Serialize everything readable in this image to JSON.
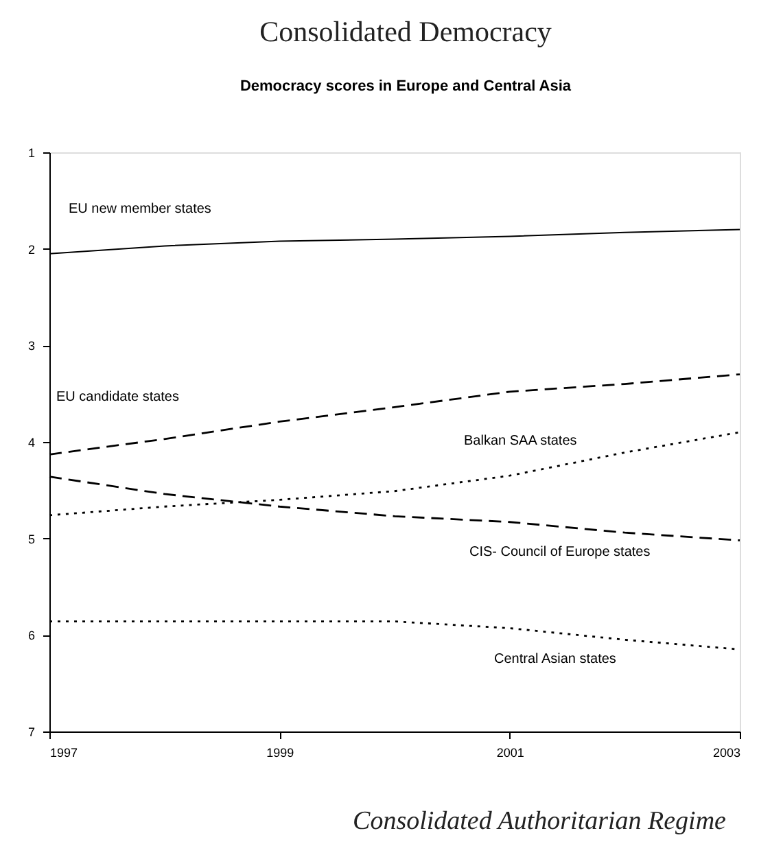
{
  "chart_data": {
    "type": "line",
    "title": "Democracy scores in Europe and Central Asia",
    "x": [
      1997,
      1998,
      1999,
      2000,
      2001,
      2002,
      2003
    ],
    "series": [
      {
        "name": "EU new member states",
        "color": "#000000",
        "line_style": "solid",
        "values": [
          2.05,
          1.97,
          1.92,
          1.9,
          1.87,
          1.83,
          1.8
        ]
      },
      {
        "name": "EU candidate states",
        "color": "#000000",
        "line_style": "dashed",
        "values": [
          4.13,
          3.97,
          3.79,
          3.64,
          3.48,
          3.4,
          3.3
        ]
      },
      {
        "name": "Balkan SAA states",
        "color": "#000000",
        "line_style": "dotted",
        "values": [
          4.76,
          4.67,
          4.6,
          4.51,
          4.35,
          4.11,
          3.9
        ]
      },
      {
        "name": "CIS- Council of Europe states",
        "color": "#000000",
        "line_style": "dashed",
        "values": [
          4.36,
          4.54,
          4.67,
          4.77,
          4.83,
          4.94,
          5.02
        ]
      },
      {
        "name": "Central Asian states",
        "color": "#000000",
        "line_style": "dotted",
        "values": [
          5.86,
          5.86,
          5.86,
          5.86,
          5.93,
          6.05,
          6.15
        ]
      }
    ],
    "annotations": [
      "Consolidated Democracy",
      "Consolidated Authoritarian Regime"
    ],
    "xlim": [
      1997,
      2003
    ],
    "xticks": [
      1997,
      1999,
      2001,
      2003
    ],
    "ylim": [
      7,
      1
    ],
    "yticks": [
      1,
      2,
      3,
      4,
      5,
      6,
      7
    ],
    "grid": false,
    "marker": "none"
  }
}
